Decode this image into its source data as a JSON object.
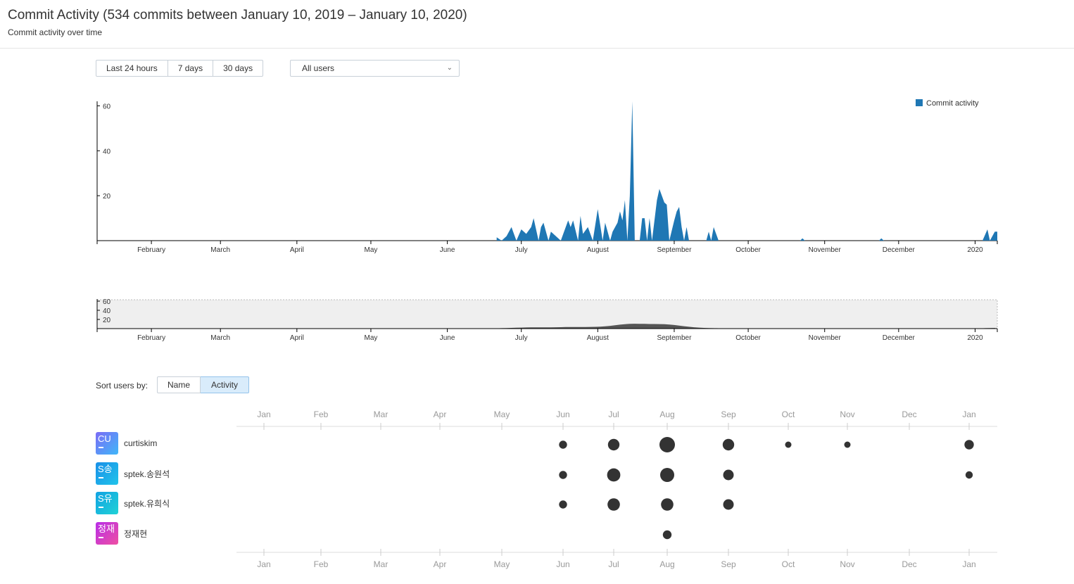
{
  "header": {
    "title": "Commit Activity (534 commits between January 10, 2019 – January 10, 2020)",
    "subtitle": "Commit activity over time"
  },
  "range_buttons": [
    "Last 24 hours",
    "7 days",
    "30 days"
  ],
  "user_filter": {
    "selected": "All users"
  },
  "main_chart": {
    "legend": "Commit activity",
    "legend_color": "#1f77b4",
    "y_ticks": [
      "60",
      "40",
      "20"
    ],
    "x_ticks": [
      "February",
      "March",
      "April",
      "May",
      "June",
      "July",
      "August",
      "September",
      "October",
      "November",
      "December",
      "2020"
    ]
  },
  "overview_chart": {
    "y_ticks": [
      "60",
      "40",
      "20"
    ],
    "x_ticks": [
      "February",
      "March",
      "April",
      "May",
      "June",
      "July",
      "August",
      "September",
      "October",
      "November",
      "December",
      "2020"
    ]
  },
  "sort": {
    "label": "Sort users by:",
    "options": [
      "Name",
      "Activity"
    ],
    "active": "Activity"
  },
  "timeline": {
    "months": [
      "Jan",
      "Feb",
      "Mar",
      "Apr",
      "May",
      "Jun",
      "Jul",
      "Aug",
      "Sep",
      "Oct",
      "Nov",
      "Dec",
      "Jan"
    ],
    "users": [
      {
        "initials": "CU",
        "name": "curtiskim",
        "colors": [
          "#7b6cf6",
          "#3fb7f8"
        ],
        "activity": [
          0,
          0,
          0,
          0,
          0,
          2,
          5,
          10,
          5,
          1,
          1,
          0,
          3
        ]
      },
      {
        "initials": "S송",
        "name": "sptek.송원석",
        "colors": [
          "#1a8fe8",
          "#20c4ea"
        ],
        "activity": [
          0,
          0,
          0,
          0,
          0,
          2,
          7,
          8,
          4,
          0,
          0,
          0,
          1.5
        ]
      },
      {
        "initials": "S유",
        "name": "sptek.유희식",
        "colors": [
          "#12a2e3",
          "#20d2d6"
        ],
        "activity": [
          0,
          0,
          0,
          0,
          0,
          2,
          6,
          6,
          4,
          0,
          0,
          0,
          0
        ]
      },
      {
        "initials": "정재",
        "name": "정재현",
        "colors": [
          "#b82ee8",
          "#ee4fa2"
        ],
        "activity": [
          0,
          0,
          0,
          0,
          0,
          0,
          0,
          2.5,
          0,
          0,
          0,
          0,
          0
        ]
      }
    ]
  },
  "chart_data": {
    "type": "area",
    "ylim": [
      0,
      62
    ],
    "legend": [
      "Commit activity"
    ],
    "x_tick_labels": [
      "February",
      "March",
      "April",
      "May",
      "June",
      "July",
      "August",
      "September",
      "October",
      "November",
      "December",
      "2020"
    ],
    "series": [
      {
        "name": "Commit activity",
        "color": "#1f77b4",
        "points": [
          [
            "2019-06-21",
            1.5
          ],
          [
            "2019-06-23",
            0
          ],
          [
            "2019-06-25",
            2
          ],
          [
            "2019-06-27",
            6
          ],
          [
            "2019-06-29",
            0
          ],
          [
            "2019-07-01",
            5
          ],
          [
            "2019-07-03",
            3
          ],
          [
            "2019-07-05",
            6
          ],
          [
            "2019-07-06",
            10
          ],
          [
            "2019-07-08",
            0
          ],
          [
            "2019-07-09",
            6
          ],
          [
            "2019-07-10",
            8
          ],
          [
            "2019-07-12",
            0
          ],
          [
            "2019-07-13",
            4
          ],
          [
            "2019-07-15",
            2
          ],
          [
            "2019-07-17",
            0
          ],
          [
            "2019-07-19",
            6
          ],
          [
            "2019-07-20",
            9
          ],
          [
            "2019-07-21",
            6
          ],
          [
            "2019-07-22",
            9
          ],
          [
            "2019-07-24",
            0
          ],
          [
            "2019-07-25",
            11
          ],
          [
            "2019-07-26",
            3
          ],
          [
            "2019-07-28",
            6
          ],
          [
            "2019-07-30",
            0
          ],
          [
            "2019-08-01",
            14
          ],
          [
            "2019-08-03",
            0
          ],
          [
            "2019-08-04",
            8
          ],
          [
            "2019-08-06",
            0
          ],
          [
            "2019-08-07",
            4
          ],
          [
            "2019-08-09",
            8
          ],
          [
            "2019-08-10",
            13
          ],
          [
            "2019-08-11",
            9
          ],
          [
            "2019-08-12",
            18
          ],
          [
            "2019-08-13",
            0
          ],
          [
            "2019-08-14",
            20
          ],
          [
            "2019-08-15",
            62
          ],
          [
            "2019-08-16",
            0
          ],
          [
            "2019-08-18",
            0
          ],
          [
            "2019-08-19",
            10
          ],
          [
            "2019-08-20",
            10
          ],
          [
            "2019-08-21",
            0
          ],
          [
            "2019-08-22",
            10
          ],
          [
            "2019-08-23",
            0
          ],
          [
            "2019-08-25",
            18
          ],
          [
            "2019-08-26",
            23
          ],
          [
            "2019-08-27",
            20
          ],
          [
            "2019-08-28",
            17
          ],
          [
            "2019-08-29",
            16
          ],
          [
            "2019-08-30",
            0
          ],
          [
            "2019-09-01",
            9
          ],
          [
            "2019-09-02",
            13
          ],
          [
            "2019-09-03",
            15
          ],
          [
            "2019-09-04",
            6
          ],
          [
            "2019-09-05",
            0
          ],
          [
            "2019-09-06",
            6
          ],
          [
            "2019-09-07",
            0
          ],
          [
            "2019-09-14",
            0
          ],
          [
            "2019-09-15",
            4
          ],
          [
            "2019-09-16",
            0
          ],
          [
            "2019-09-17",
            6
          ],
          [
            "2019-09-19",
            0
          ],
          [
            "2019-10-22",
            0
          ],
          [
            "2019-10-23",
            1
          ],
          [
            "2019-10-24",
            0
          ],
          [
            "2019-11-23",
            0
          ],
          [
            "2019-11-24",
            1
          ],
          [
            "2019-11-25",
            0
          ],
          [
            "2020-01-04",
            0
          ],
          [
            "2020-01-06",
            5
          ],
          [
            "2020-01-07",
            0
          ],
          [
            "2020-01-09",
            4
          ],
          [
            "2020-01-10",
            4
          ]
        ]
      }
    ]
  }
}
